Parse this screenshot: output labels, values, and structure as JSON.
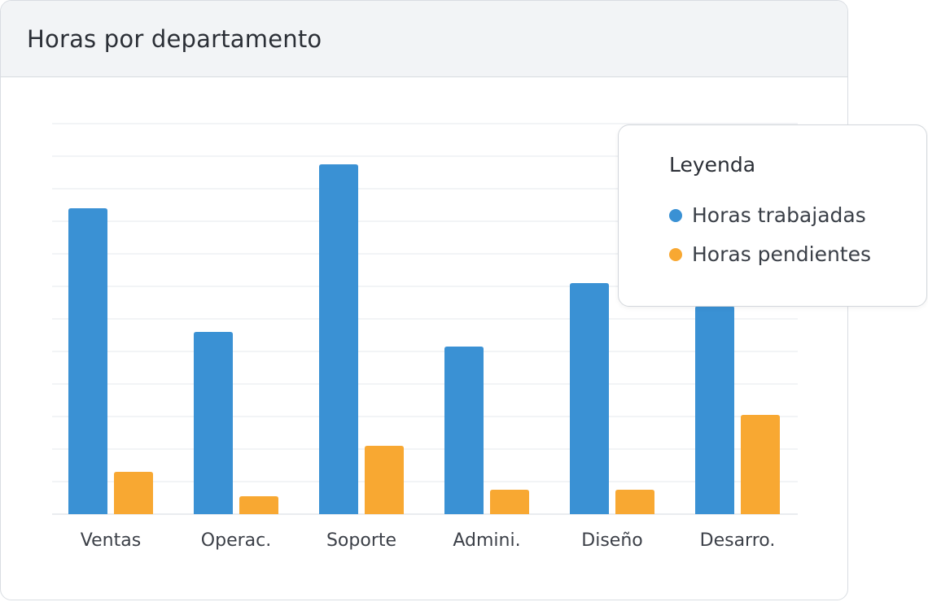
{
  "card": {
    "title": "Horas por departamento"
  },
  "legend": {
    "title": "Leyenda",
    "items": [
      {
        "label": "Horas trabajadas",
        "color": "#3a91d4"
      },
      {
        "label": "Horas pendientes",
        "color": "#f8a832"
      }
    ]
  },
  "chart_data": {
    "type": "bar",
    "title": "Horas por departamento",
    "categories": [
      "Ventas",
      "Operac.",
      "Soporte",
      "Admini.",
      "Diseño",
      "Desarro."
    ],
    "series": [
      {
        "name": "Horas trabajadas",
        "color": "#3a91d4",
        "values": [
          94,
          56,
          107.5,
          51.5,
          71,
          64
        ]
      },
      {
        "name": "Horas pendientes",
        "color": "#f8a832",
        "values": [
          13,
          5.5,
          21,
          7.5,
          7.5,
          30.5
        ]
      }
    ],
    "ylim": [
      0,
      120
    ],
    "grid": true,
    "legend_position": "top-right"
  }
}
